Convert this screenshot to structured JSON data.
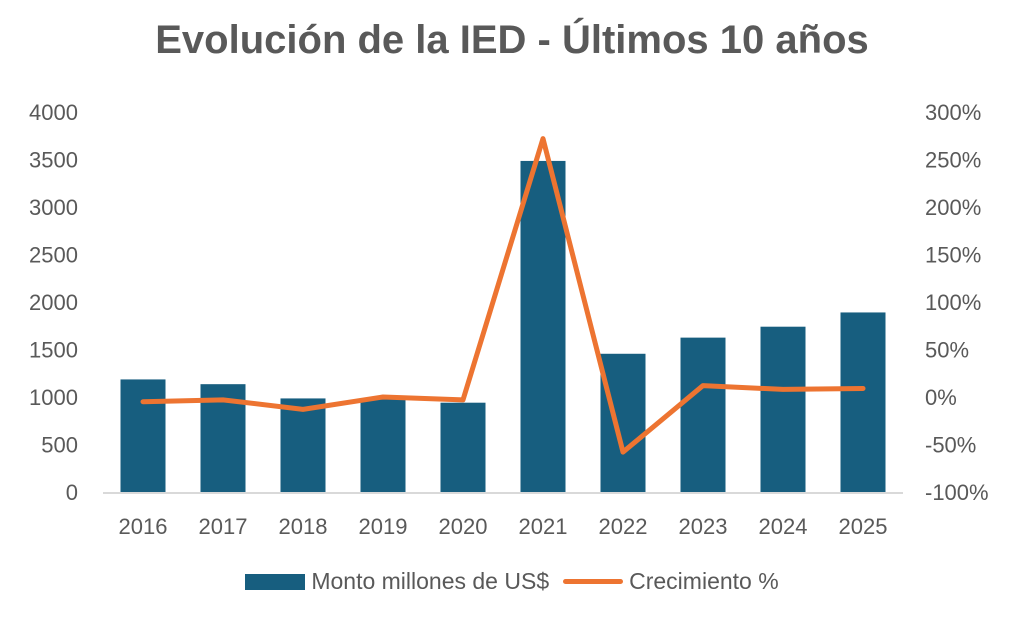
{
  "chart_data": {
    "type": "bar+line",
    "title": "Evolución de la IED - Últimos 10 años",
    "categories": [
      "2016",
      "2017",
      "2018",
      "2019",
      "2020",
      "2021",
      "2022",
      "2023",
      "2024",
      "2025"
    ],
    "series": [
      {
        "name": "Monto millones de US$",
        "type": "bar",
        "axis": "left",
        "color": "#175E7F",
        "values": [
          1185,
          1135,
          985,
          975,
          940,
          3485,
          1455,
          1625,
          1740,
          1890
        ]
      },
      {
        "name": "Crecimiento %",
        "type": "line",
        "axis": "right",
        "color": "#ED7431",
        "values": [
          -5,
          -3,
          -13,
          0,
          -3,
          272,
          -58,
          12,
          8,
          9
        ]
      }
    ],
    "left_axis": {
      "ylim": [
        0,
        4000
      ],
      "ticks": [
        "0",
        "500",
        "1000",
        "1500",
        "2000",
        "2500",
        "3000",
        "3500",
        "4000"
      ]
    },
    "right_axis": {
      "ylim": [
        -100,
        300
      ],
      "ticks": [
        "-100%",
        "-50%",
        "0%",
        "50%",
        "100%",
        "150%",
        "200%",
        "250%",
        "300%"
      ]
    },
    "grid": false,
    "legend_position": "bottom"
  }
}
